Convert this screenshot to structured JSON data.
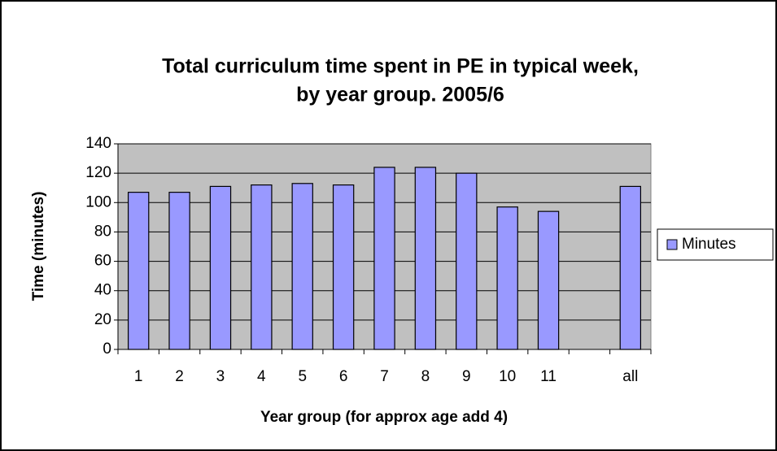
{
  "chart_data": {
    "type": "bar",
    "title": [
      "Total curriculum time spent in PE in typical week,",
      "by year group.  2005/6"
    ],
    "x_label": "Year group (for approx age add 4)",
    "y_label": "Time (minutes)",
    "categories": [
      "1",
      "2",
      "3",
      "4",
      "5",
      "6",
      "7",
      "8",
      "9",
      "10",
      "11",
      null,
      "all"
    ],
    "series": [
      {
        "name": "Minutes",
        "color": "#9999ff",
        "values": [
          107,
          107,
          111,
          112,
          113,
          112,
          124,
          124,
          120,
          97,
          94,
          null,
          111
        ]
      }
    ],
    "ylim": [
      0,
      140
    ],
    "yticks": [
      0,
      20,
      40,
      60,
      80,
      100,
      120,
      140
    ],
    "grid": true,
    "legend": "right",
    "plot_background": "#c0c0c0"
  }
}
